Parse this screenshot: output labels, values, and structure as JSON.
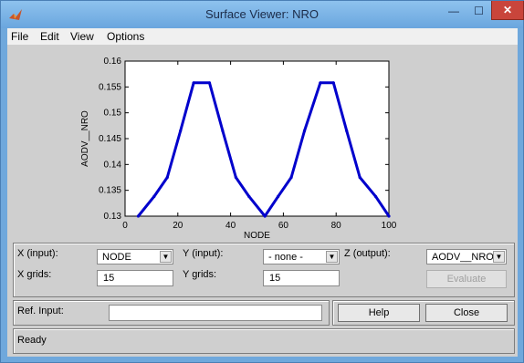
{
  "window": {
    "title": "Surface Viewer: NRO",
    "close_glyph": "✕",
    "min_glyph": "—",
    "max_glyph": "☐"
  },
  "menu": [
    "File",
    "Edit",
    "View",
    "Options"
  ],
  "chart_data": {
    "type": "line",
    "xlabel": "NODE",
    "ylabel": "AODV__NRO",
    "xlim": [
      0,
      100
    ],
    "ylim": [
      0.13,
      0.16
    ],
    "xticks": [
      "0",
      "20",
      "40",
      "60",
      "80",
      "100"
    ],
    "yticks": [
      "0.13",
      "0.135",
      "0.14",
      "0.145",
      "0.15",
      "0.155",
      "0.16"
    ],
    "series": [
      {
        "color": "#0000cc",
        "x": [
          5,
          11,
          16,
          21,
          26,
          32,
          37,
          42,
          47,
          53,
          58,
          63,
          68,
          74,
          79,
          84,
          89,
          95,
          100
        ],
        "y": [
          0.13,
          0.1338,
          0.1375,
          0.1465,
          0.1558,
          0.1558,
          0.1465,
          0.1375,
          0.1338,
          0.13,
          0.1338,
          0.1375,
          0.1465,
          0.1558,
          0.1558,
          0.1465,
          0.1375,
          0.1338,
          0.13
        ]
      }
    ]
  },
  "controls": {
    "x_input_label": "X (input):",
    "x_input_value": "NODE",
    "y_input_label": "Y (input):",
    "y_input_value": "- none -",
    "z_output_label": "Z (output):",
    "z_output_value": "AODV__NRO",
    "x_grids_label": "X grids:",
    "x_grids_value": "15",
    "y_grids_label": "Y grids:",
    "y_grids_value": "15",
    "evaluate_label": "Evaluate"
  },
  "ref": {
    "label": "Ref. Input:",
    "value": ""
  },
  "buttons": {
    "help": "Help",
    "close": "Close"
  },
  "status": "Ready"
}
